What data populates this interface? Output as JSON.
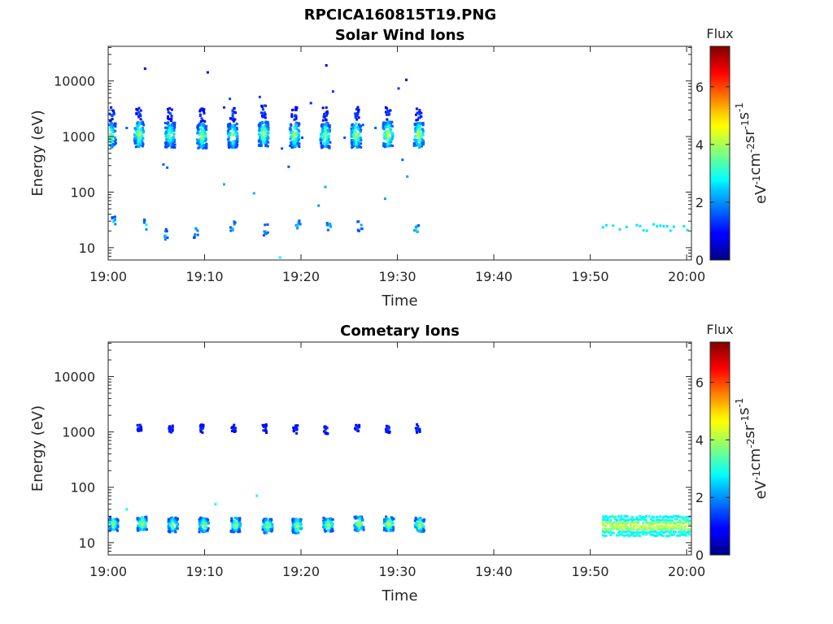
{
  "figure": {
    "title": "RPCICA160815T19.PNG"
  },
  "chart_data": [
    {
      "type": "heatmap",
      "title": "Solar Wind Ions",
      "xlabel": "Time",
      "ylabel": "Energy (eV)",
      "x_tick_labels": [
        "19:00",
        "19:10",
        "19:20",
        "19:30",
        "19:40",
        "19:50",
        "20:00"
      ],
      "x_ticks_min": [
        0,
        10,
        20,
        30,
        40,
        50,
        60
      ],
      "xlim_min": [
        0,
        60.5
      ],
      "y_scale": "log",
      "ylim": [
        6,
        42000
      ],
      "y_ticks": [
        10,
        100,
        1000,
        10000
      ],
      "y_tick_labels": [
        "10",
        "100",
        "1000",
        "10000"
      ],
      "colorbar": {
        "label": "Flux",
        "units": "eV-1cm-2sr-1s-1",
        "range": [
          0,
          7.4
        ],
        "ticks": [
          "0",
          "2",
          "4",
          "6"
        ],
        "colormap": "jet"
      },
      "blobs": [
        {
          "t": 0.2,
          "e": 1100,
          "v": 3.8
        },
        {
          "t": 3.1,
          "e": 1150,
          "v": 4.3
        },
        {
          "t": 6.3,
          "e": 1120,
          "v": 4.0
        },
        {
          "t": 9.6,
          "e": 1080,
          "v": 4.2
        },
        {
          "t": 12.8,
          "e": 1100,
          "v": 4.1
        },
        {
          "t": 16.0,
          "e": 1180,
          "v": 4.4
        },
        {
          "t": 19.2,
          "e": 1120,
          "v": 4.3
        },
        {
          "t": 22.4,
          "e": 1100,
          "v": 4.2
        },
        {
          "t": 25.6,
          "e": 1120,
          "v": 4.4
        },
        {
          "t": 28.9,
          "e": 1150,
          "v": 4.6
        },
        {
          "t": 32.1,
          "e": 1120,
          "v": 4.5
        }
      ],
      "low_energy_patches": [
        {
          "t": 0.5,
          "e": 31,
          "v": 2.8
        },
        {
          "t": 3.8,
          "e": 27,
          "v": 2.9
        },
        {
          "t": 5.8,
          "e": 18,
          "v": 2.6
        },
        {
          "t": 9.0,
          "e": 20,
          "v": 2.7
        },
        {
          "t": 12.8,
          "e": 26,
          "v": 2.9
        },
        {
          "t": 16.2,
          "e": 22,
          "v": 2.7
        },
        {
          "t": 19.6,
          "e": 26,
          "v": 2.8
        },
        {
          "t": 22.8,
          "e": 26,
          "v": 2.8
        },
        {
          "t": 26.0,
          "e": 26,
          "v": 2.8
        },
        {
          "t": 31.9,
          "e": 22,
          "v": 2.9
        }
      ],
      "late_band": {
        "t_start": 51.2,
        "t_end": 60.3,
        "e": 24,
        "v": 2.6
      },
      "scatter_points": [
        {
          "t": 0.4,
          "e": 2600,
          "v": 1.6
        },
        {
          "t": 1.8,
          "e": 1500,
          "v": 1.6
        },
        {
          "t": 3.7,
          "e": 17500,
          "v": 0.9
        },
        {
          "t": 5.6,
          "e": 330,
          "v": 1.6
        },
        {
          "t": 6.0,
          "e": 290,
          "v": 1.6
        },
        {
          "t": 10.2,
          "e": 15000,
          "v": 0.9
        },
        {
          "t": 11.9,
          "e": 3500,
          "v": 1.2
        },
        {
          "t": 12.5,
          "e": 5000,
          "v": 1.4
        },
        {
          "t": 11.9,
          "e": 145,
          "v": 2.2
        },
        {
          "t": 15.0,
          "e": 100,
          "v": 2.2
        },
        {
          "t": 15.6,
          "e": 5400,
          "v": 1.4
        },
        {
          "t": 16.1,
          "e": 3800,
          "v": 1.4
        },
        {
          "t": 17.9,
          "e": 640,
          "v": 1.5
        },
        {
          "t": 18.6,
          "e": 300,
          "v": 1.5
        },
        {
          "t": 20.9,
          "e": 4200,
          "v": 1.2
        },
        {
          "t": 22.5,
          "e": 20000,
          "v": 0.9
        },
        {
          "t": 23.2,
          "e": 6800,
          "v": 1.3
        },
        {
          "t": 22.4,
          "e": 130,
          "v": 2.2
        },
        {
          "t": 21.7,
          "e": 60,
          "v": 2.0
        },
        {
          "t": 27.6,
          "e": 1500,
          "v": 1.6
        },
        {
          "t": 28.6,
          "e": 80,
          "v": 2.1
        },
        {
          "t": 30.0,
          "e": 7700,
          "v": 1.3
        },
        {
          "t": 30.8,
          "e": 11000,
          "v": 0.9
        },
        {
          "t": 30.4,
          "e": 400,
          "v": 1.6
        },
        {
          "t": 30.9,
          "e": 200,
          "v": 2.1
        },
        {
          "t": 17.7,
          "e": 7,
          "v": 2.8
        },
        {
          "t": 20.0,
          "e": 1000,
          "v": 1.5
        },
        {
          "t": 24.4,
          "e": 1000,
          "v": 1.5
        },
        {
          "t": 26.3,
          "e": 1700,
          "v": 1.5
        }
      ]
    },
    {
      "type": "heatmap",
      "title": "Cometary Ions",
      "xlabel": "Time",
      "ylabel": "Energy (eV)",
      "x_tick_labels": [
        "19:00",
        "19:10",
        "19:20",
        "19:30",
        "19:40",
        "19:50",
        "20:00"
      ],
      "x_ticks_min": [
        0,
        10,
        20,
        30,
        40,
        50,
        60
      ],
      "xlim_min": [
        0,
        60.5
      ],
      "y_scale": "log",
      "ylim": [
        6,
        42000
      ],
      "y_ticks": [
        10,
        100,
        1000,
        10000
      ],
      "y_tick_labels": [
        "10",
        "100",
        "1000",
        "10000"
      ],
      "colorbar": {
        "label": "Flux",
        "units": "eV-1cm-2sr-1s-1",
        "range": [
          0,
          7.4
        ],
        "ticks": [
          "0",
          "2",
          "4",
          "6"
        ],
        "colormap": "jet"
      },
      "blobs_1000eV": [
        {
          "t": 3.1,
          "e": 1300,
          "v": 1.5
        },
        {
          "t": 6.4,
          "e": 1200,
          "v": 1.6
        },
        {
          "t": 9.6,
          "e": 1200,
          "v": 1.5
        },
        {
          "t": 12.9,
          "e": 1180,
          "v": 1.5
        },
        {
          "t": 16.1,
          "e": 1200,
          "v": 1.6
        },
        {
          "t": 19.3,
          "e": 1150,
          "v": 1.5
        },
        {
          "t": 22.5,
          "e": 1150,
          "v": 1.5
        },
        {
          "t": 25.7,
          "e": 1200,
          "v": 1.6
        },
        {
          "t": 28.9,
          "e": 1200,
          "v": 1.6
        },
        {
          "t": 32.0,
          "e": 1200,
          "v": 1.6
        }
      ],
      "blobs_20eV": [
        {
          "t": 0.4,
          "e": 23,
          "v": 4.3
        },
        {
          "t": 3.4,
          "e": 23,
          "v": 4.6
        },
        {
          "t": 6.6,
          "e": 22,
          "v": 4.2
        },
        {
          "t": 9.8,
          "e": 22,
          "v": 4.3
        },
        {
          "t": 13.1,
          "e": 22,
          "v": 4.3
        },
        {
          "t": 16.4,
          "e": 21,
          "v": 4.4
        },
        {
          "t": 19.5,
          "e": 21,
          "v": 4.6
        },
        {
          "t": 22.7,
          "e": 22,
          "v": 4.4
        },
        {
          "t": 25.9,
          "e": 23,
          "v": 4.5
        },
        {
          "t": 29.0,
          "e": 23,
          "v": 4.7
        },
        {
          "t": 32.2,
          "e": 22,
          "v": 4.5
        }
      ],
      "late_band": {
        "t_start": 51.2,
        "t_end": 60.3,
        "e": 21,
        "v": 3.6
      },
      "scatter_points": [
        {
          "t": 1.8,
          "e": 42,
          "v": 2.8
        },
        {
          "t": 11.0,
          "e": 52,
          "v": 2.9
        },
        {
          "t": 15.3,
          "e": 74,
          "v": 2.9
        }
      ]
    }
  ]
}
